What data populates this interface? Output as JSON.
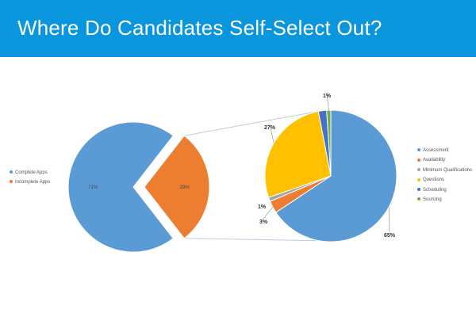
{
  "slide": {
    "title": "Where Do Candidates Self-Select Out?"
  },
  "colors": {
    "title_bar": "#0a96dd",
    "complete": "#5b9bd5",
    "incomplete": "#ed7d31",
    "assessment": "#5b9bd5",
    "availability": "#ed7d31",
    "minimum_qualifications": "#a5a5a5",
    "questions": "#ffc000",
    "scheduling": "#4472c4",
    "sourcing": "#70ad47",
    "connector": "#b8cde0"
  },
  "chart_data": [
    {
      "type": "pie",
      "series": [
        {
          "name": "Complete Apps",
          "value": 71,
          "label": "71%",
          "color": "#5b9bd5"
        },
        {
          "name": "Incomplete Apps",
          "value": 29,
          "label": "29%",
          "color": "#ed7d31",
          "exploded": true
        }
      ],
      "legend": [
        "Complete Apps",
        "Incomplete Apps"
      ],
      "legend_position": "left"
    },
    {
      "type": "pie",
      "series": [
        {
          "name": "Assessment",
          "value": 65,
          "label": "65%",
          "color": "#5b9bd5"
        },
        {
          "name": "Availability",
          "value": 3,
          "label": "3%",
          "color": "#ed7d31"
        },
        {
          "name": "Minimum Qualifications",
          "value": 1,
          "label": "1%",
          "color": "#a5a5a5"
        },
        {
          "name": "Questions",
          "value": 27,
          "label": "27%",
          "color": "#ffc000"
        },
        {
          "name": "Scheduling",
          "value": 2,
          "label": "",
          "color": "#4472c4"
        },
        {
          "name": "Sourcing",
          "value": 1,
          "label": "1%",
          "color": "#70ad47"
        }
      ],
      "legend": [
        "Assessment",
        "Availability",
        "Minimum Qualifications",
        "Questions",
        "Scheduling",
        "Sourcing"
      ],
      "legend_position": "right"
    }
  ]
}
